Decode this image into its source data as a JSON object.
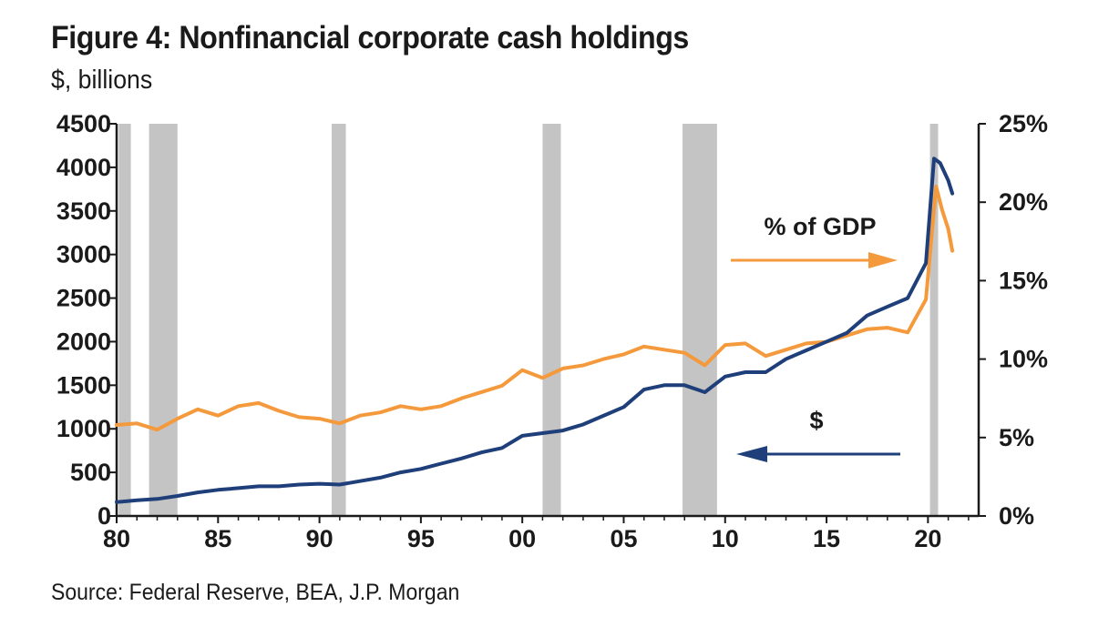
{
  "title": "Figure 4: Nonfinancial corporate cash holdings",
  "subtitle": "$, billions",
  "source": "Source: Federal Reserve, BEA, J.P. Morgan",
  "chart_data": {
    "type": "line",
    "x_ticks": [
      "80",
      "85",
      "90",
      "95",
      "00",
      "05",
      "10",
      "15",
      "20"
    ],
    "x_tick_years": [
      1980,
      1985,
      1990,
      1995,
      2000,
      2005,
      2010,
      2015,
      2020
    ],
    "xlim": [
      1980,
      2022.5
    ],
    "y_left": {
      "ticks": [
        0,
        500,
        1000,
        1500,
        2000,
        2500,
        3000,
        3500,
        4000,
        4500
      ],
      "ylim": [
        0,
        4500
      ]
    },
    "y_right": {
      "ticks": [
        "0%",
        "5%",
        "10%",
        "15%",
        "20%",
        "25%"
      ],
      "tick_values": [
        0,
        5,
        10,
        15,
        20,
        25
      ],
      "ylim": [
        0,
        25
      ]
    },
    "recessions": [
      [
        1980.1,
        1980.7
      ],
      [
        1981.6,
        1983.0
      ],
      [
        1990.6,
        1991.3
      ],
      [
        2001.0,
        2001.9
      ],
      [
        2007.9,
        2009.6
      ],
      [
        2020.1,
        2020.5
      ]
    ],
    "recession_color": "#c4c4c4",
    "annotations": {
      "pct_label": "% of GDP",
      "usd_label": "$"
    },
    "series": [
      {
        "name": "$",
        "axis": "left",
        "color": "#1f3f7a",
        "x": [
          1980,
          1981,
          1982,
          1983,
          1984,
          1985,
          1986,
          1987,
          1988,
          1989,
          1990,
          1991,
          1992,
          1993,
          1994,
          1995,
          1996,
          1997,
          1998,
          1999,
          2000,
          2001,
          2002,
          2003,
          2004,
          2005,
          2006,
          2007,
          2008,
          2009,
          2010,
          2011,
          2012,
          2013,
          2014,
          2015,
          2016,
          2017,
          2018,
          2019,
          2019.9,
          2020.3,
          2020.6,
          2021.0,
          2021.2
        ],
        "values": [
          160,
          180,
          195,
          230,
          270,
          300,
          320,
          340,
          340,
          360,
          370,
          360,
          400,
          440,
          500,
          540,
          600,
          660,
          730,
          780,
          920,
          950,
          980,
          1050,
          1150,
          1250,
          1450,
          1500,
          1500,
          1420,
          1600,
          1650,
          1650,
          1800,
          1900,
          2000,
          2100,
          2300,
          2400,
          2500,
          2900,
          4100,
          4050,
          3850,
          3700
        ]
      },
      {
        "name": "% of GDP",
        "axis": "right",
        "color": "#f59a3c",
        "x": [
          1980,
          1981,
          1982,
          1983,
          1984,
          1985,
          1986,
          1987,
          1988,
          1989,
          1990,
          1991,
          1992,
          1993,
          1994,
          1995,
          1996,
          1997,
          1998,
          1999,
          2000,
          2001,
          2002,
          2003,
          2004,
          2005,
          2006,
          2007,
          2008,
          2009,
          2010,
          2011,
          2012,
          2013,
          2014,
          2015,
          2016,
          2017,
          2018,
          2019,
          2019.9,
          2020.4,
          2020.7,
          2021.0,
          2021.2
        ],
        "values": [
          5.8,
          5.9,
          5.5,
          6.2,
          6.8,
          6.4,
          7.0,
          7.2,
          6.7,
          6.3,
          6.2,
          5.9,
          6.4,
          6.6,
          7.0,
          6.8,
          7.0,
          7.5,
          7.9,
          8.3,
          9.3,
          8.8,
          9.4,
          9.6,
          10.0,
          10.3,
          10.8,
          10.6,
          10.4,
          9.6,
          10.9,
          11.0,
          10.2,
          10.6,
          11.0,
          11.1,
          11.5,
          11.9,
          12.0,
          11.7,
          13.8,
          21.0,
          19.5,
          18.3,
          16.9
        ]
      }
    ],
    "grid": false
  }
}
